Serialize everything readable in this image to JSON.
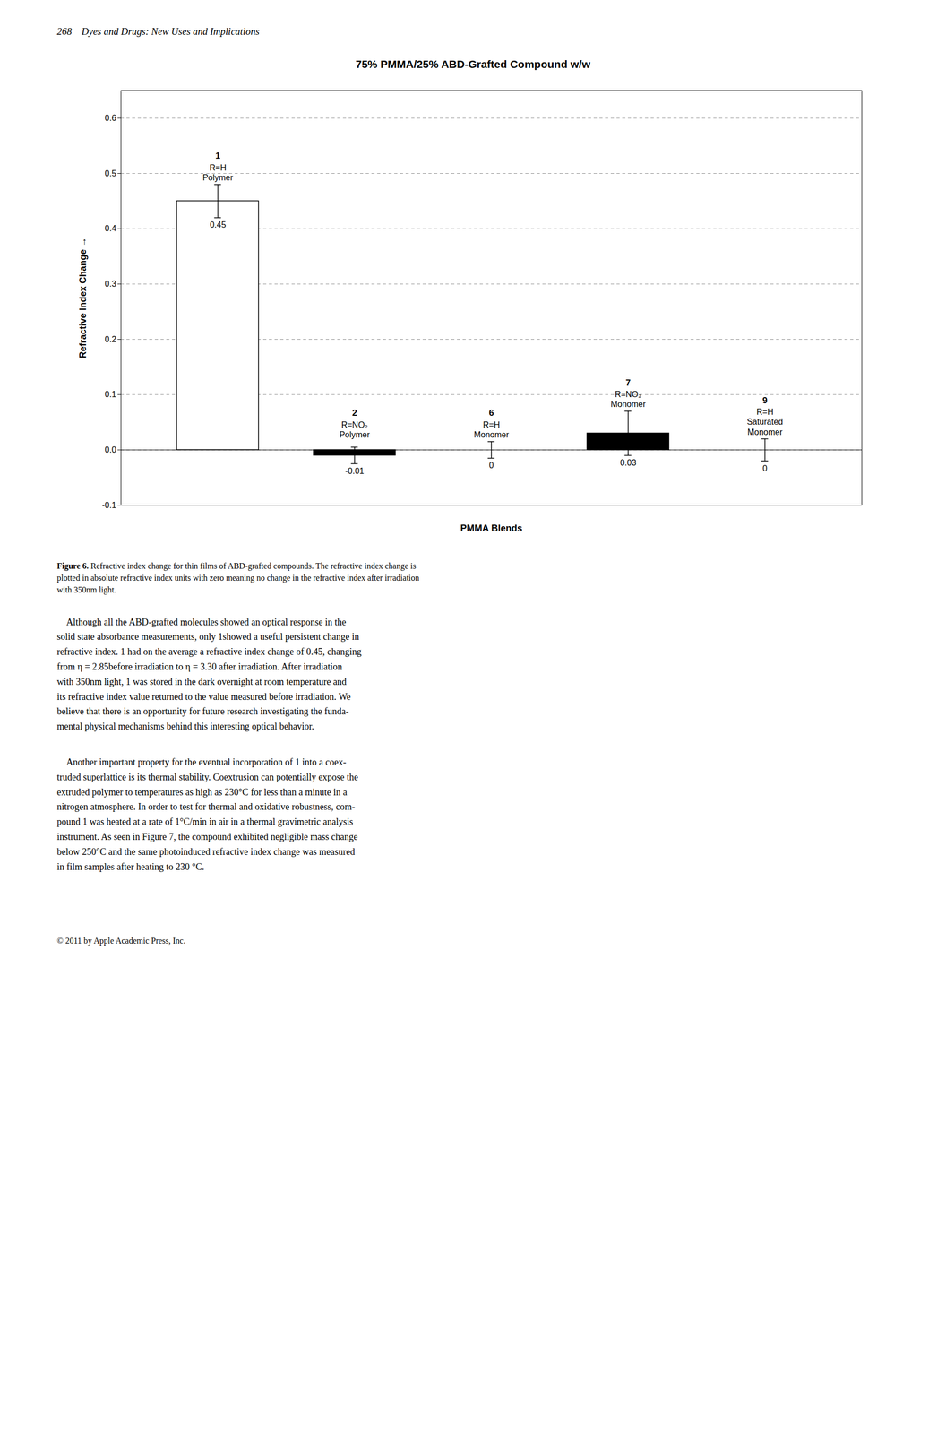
{
  "chart_data": {
    "type": "bar",
    "title": "75% PMMA/25% ABD-Grafted Compound w/w",
    "xlabel": "PMMA Blends",
    "ylabel": "Refractive Index Change",
    "categories": [
      null,
      null,
      null,
      null,
      null
    ],
    "values": [
      0.45,
      -0.01,
      0.0,
      0.03,
      0.0
    ],
    "errors": [
      0.03,
      0.015,
      0.015,
      0.04,
      0.02
    ],
    "colors": [
      "white",
      "black",
      "white",
      "black",
      "white"
    ],
    "annotations": [
      [
        "1",
        "R=H",
        "Polymer"
      ],
      [
        "2",
        "R=NO₂",
        "Polymer"
      ],
      [
        "6",
        "R=H",
        "Monomer"
      ],
      [
        "7",
        "R=NO₂",
        "Monomer"
      ],
      [
        "9",
        "R=H",
        "Saturated",
        "Monomer"
      ]
    ],
    "ylim": [
      -0.1,
      0.65
    ],
    "yticks": [
      -0.1,
      {
        "value": 0.0,
        "label": "0.0"
      },
      0.1,
      0.2,
      0.3,
      0.4,
      0.5,
      0.6
    ],
    "grid": true,
    "data_labels": true,
    "tick_labels": "y"
  },
  "page_header": "268    Dyes and Drugs: New Uses and Implications",
  "caption": "Figure 6. Refractive index change for thin films of ABD-grafted compounds. The refractive index change is\nplotted in absolute refractive index units with zero meaning no change in the refractive index after irradiation\nwith 350nm light.",
  "body": [
    "    Although all the ABD-grafted molecules showed an optical response in the\nsolid state absorbance measurements, only 1showed a useful persistent change in\nrefractive index. 1 had on the average a refractive index change of 0.45, changing\nfrom η = 2.85before irradiation to η = 3.30 after irradiation. After irradiation\nwith 350nm light, 1 was stored in the dark overnight at room temperature and\nits refractive index value returned to the value measured before irradiation. We\nbelieve that there is an opportunity for future research investigating the funda-\nmental physical mechanisms behind this interesting optical behavior.",
    "    Another important property for the eventual incorporation of 1 into a coex-\ntruded superlattice is its thermal stability. Coextrusion can potentially expose the\nextruded polymer to temperatures as high as 230°C for less than a minute in a\nnitrogen atmosphere. In order to test for thermal and oxidative robustness, com-\npound 1 was heated at a rate of 1°C/min in air in a thermal gravimetric analysis\ninstrument. As seen in Figure 7, the compound exhibited negligible mass change\nbelow 250°C and the same photoinduced refractive index change was measured\nin film samples after heating to 230 °C."
  ],
  "footer": "© 2011 by Apple Academic Press, Inc."
}
